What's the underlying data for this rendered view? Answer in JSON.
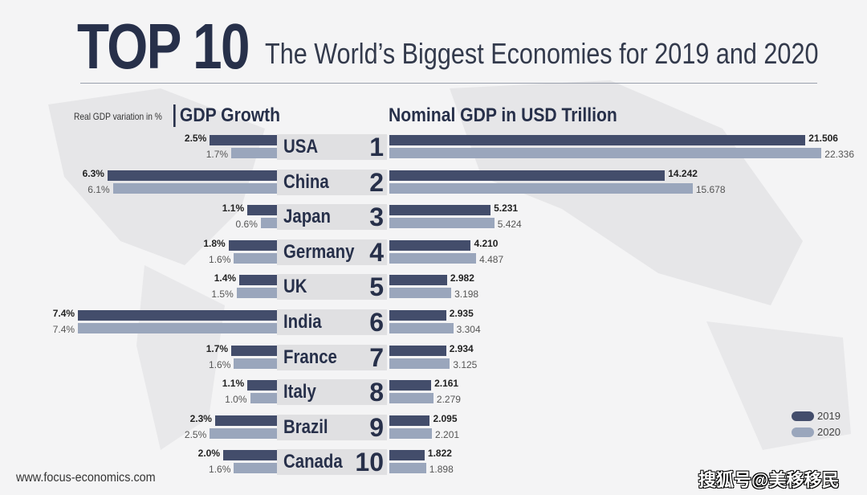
{
  "header": {
    "top": "TOP 10",
    "subtitle": "The World’s Biggest Economies for 2019 and 2020"
  },
  "footer": "www.focus-economics.com",
  "watermark": "搜狐号@美移移民",
  "colors": {
    "y2019": "#434d6b",
    "y2020": "#9aa6bc"
  },
  "chart_data": [
    {
      "type": "bar",
      "orientation": "horizontal",
      "title": "GDP Growth",
      "subtitle": "Real GDP variation in %",
      "categories": [
        "USA",
        "China",
        "Japan",
        "Germany",
        "UK",
        "India",
        "France",
        "Italy",
        "Brazil",
        "Canada"
      ],
      "ranks": [
        1,
        2,
        3,
        4,
        5,
        6,
        7,
        8,
        9,
        10
      ],
      "series": [
        {
          "name": "2019",
          "values": [
            2.5,
            6.3,
            1.1,
            1.8,
            1.4,
            7.4,
            1.7,
            1.1,
            2.3,
            2.0
          ]
        },
        {
          "name": "2020",
          "values": [
            1.7,
            6.1,
            0.6,
            1.6,
            1.5,
            7.4,
            1.6,
            1.0,
            2.5,
            1.6
          ]
        }
      ]
    },
    {
      "type": "bar",
      "orientation": "horizontal",
      "title": "Nominal GDP in USD Trillion",
      "categories": [
        "USA",
        "China",
        "Japan",
        "Germany",
        "UK",
        "India",
        "France",
        "Italy",
        "Brazil",
        "Canada"
      ],
      "series": [
        {
          "name": "2019",
          "values": [
            21.506,
            14.242,
            5.231,
            4.21,
            2.982,
            2.935,
            2.934,
            2.161,
            2.095,
            1.822
          ]
        },
        {
          "name": "2020",
          "values": [
            22.336,
            15.678,
            5.424,
            4.487,
            3.198,
            3.304,
            3.125,
            2.279,
            2.201,
            1.898
          ]
        }
      ],
      "legend": "bottom-right"
    }
  ]
}
